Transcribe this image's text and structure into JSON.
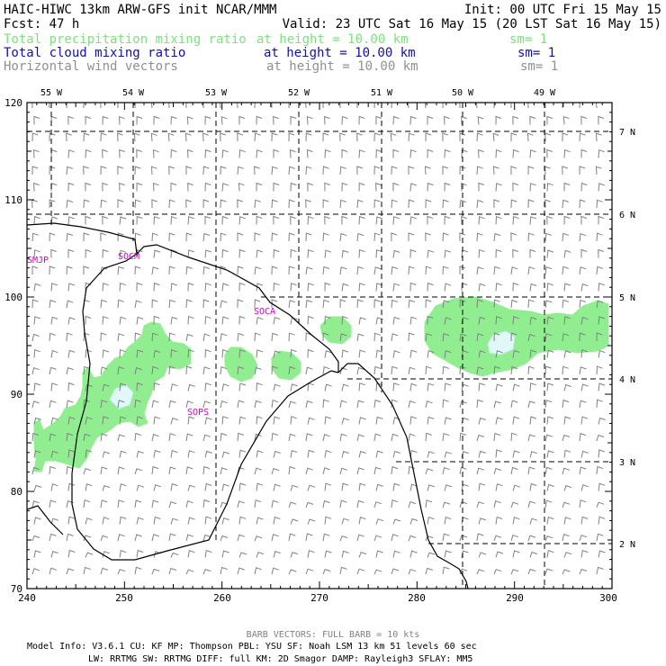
{
  "header": {
    "title": "HAIC-HIWC 13km ARW-GFS init   NCAR/MMM",
    "init": "Init: 00 UTC Fri 15 May 15",
    "fcst": "Fcst:   47 h",
    "valid": "Valid: 23 UTC Sat 16 May 15 (20 LST Sat 16 May 15)",
    "fields": [
      {
        "name": "Total precipitation mixing ratio",
        "height": "at height = 10.00 km",
        "sm": "sm= 1",
        "color": "#7ee07e"
      },
      {
        "name": "Total cloud mixing ratio",
        "height": "at height = 10.00 km",
        "sm": "sm= 1",
        "color": "#1010b0"
      },
      {
        "name": "Horizontal wind vectors",
        "height": "at height = 10.00 km",
        "sm": "sm= 1",
        "color": "#909090"
      }
    ]
  },
  "map": {
    "x_ticks": [
      "240",
      "250",
      "260",
      "270",
      "280",
      "290",
      "300"
    ],
    "y_ticks": [
      "70",
      "80",
      "90",
      "100",
      "110",
      "120"
    ],
    "lon_labels": [
      "55 W",
      "54 W",
      "53 W",
      "52 W",
      "51 W",
      "50 W",
      "49 W"
    ],
    "lat_labels": [
      "7 N",
      "6 N",
      "5 N",
      "4 N",
      "3 N",
      "2 N"
    ],
    "stations": [
      "SMJP",
      "SOCM",
      "SOCA",
      "SOPS"
    ],
    "colors": {
      "precip": "#90ee90",
      "cloud": "#e0f8f8",
      "station": "#cc00cc",
      "barb": "#808080"
    }
  },
  "footer": {
    "barb_note": "BARB VECTORS:  FULL BARB = 10 kts",
    "model_line1": "Model Info: V3.6.1    CU: KF      MP: Thompson    PBL: YSU       SF: Noah LSM     13 km    51 levels   60 sec",
    "model_line2": "LW: RRTMG   SW: RRTMG  DIFF: full   KM: 2D Smagor DAMP: Rayleigh3   SFLAY: MM5"
  }
}
